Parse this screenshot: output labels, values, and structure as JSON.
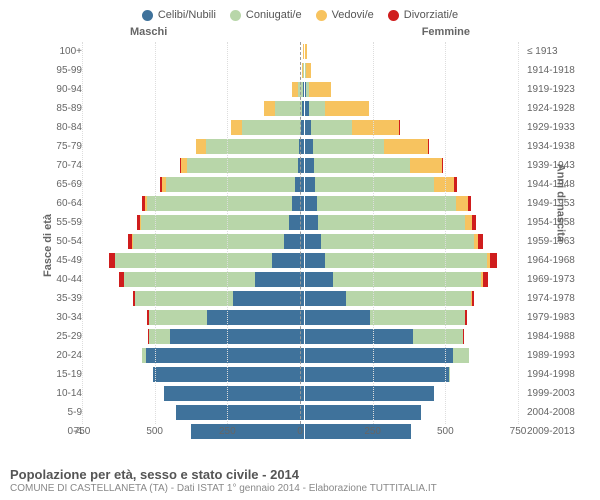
{
  "chart": {
    "type": "population-pyramid",
    "legend": [
      {
        "label": "Celibi/Nubili",
        "color": "#3f729b"
      },
      {
        "label": "Coniugati/e",
        "color": "#b8d6a9"
      },
      {
        "label": "Vedovi/e",
        "color": "#f7c35f"
      },
      {
        "label": "Divorziati/e",
        "color": "#cf1d1d"
      }
    ],
    "male_header": "Maschi",
    "female_header": "Femmine",
    "y_title_left": "Fasce di età",
    "y_title_right": "Anni di nascita",
    "xticks": [
      750,
      500,
      250,
      0,
      250,
      500,
      750
    ],
    "xmax": 750,
    "background_color": "#ffffff",
    "grid_color": "#dddddd",
    "centerline_color": "#999999",
    "label_fontsize": 10,
    "title": "Popolazione per età, sesso e stato civile - 2014",
    "subtitle": "COMUNE DI CASTELLANETA (TA) - Dati ISTAT 1° gennaio 2014 - Elaborazione TUTTITALIA.IT",
    "rows": [
      {
        "age": "100+",
        "birth": "≤ 1913",
        "m": {
          "single": 0,
          "married": 0,
          "widowed": 2,
          "divorced": 0
        },
        "f": {
          "single": 0,
          "married": 0,
          "widowed": 6,
          "divorced": 0
        }
      },
      {
        "age": "95-99",
        "birth": "1914-1918",
        "m": {
          "single": 0,
          "married": 2,
          "widowed": 4,
          "divorced": 0
        },
        "f": {
          "single": 1,
          "married": 1,
          "widowed": 20,
          "divorced": 0
        }
      },
      {
        "age": "90-94",
        "birth": "1919-1923",
        "m": {
          "single": 2,
          "married": 20,
          "widowed": 20,
          "divorced": 0
        },
        "f": {
          "single": 5,
          "married": 10,
          "widowed": 75,
          "divorced": 0
        }
      },
      {
        "age": "85-89",
        "birth": "1924-1928",
        "m": {
          "single": 6,
          "married": 95,
          "widowed": 35,
          "divorced": 0
        },
        "f": {
          "single": 15,
          "married": 55,
          "widowed": 150,
          "divorced": 0
        }
      },
      {
        "age": "80-84",
        "birth": "1929-1933",
        "m": {
          "single": 12,
          "married": 200,
          "widowed": 40,
          "divorced": 0
        },
        "f": {
          "single": 22,
          "married": 140,
          "widowed": 160,
          "divorced": 2
        }
      },
      {
        "age": "75-79",
        "birth": "1934-1938",
        "m": {
          "single": 18,
          "married": 320,
          "widowed": 32,
          "divorced": 2
        },
        "f": {
          "single": 28,
          "married": 245,
          "widowed": 150,
          "divorced": 4
        }
      },
      {
        "age": "70-74",
        "birth": "1939-1943",
        "m": {
          "single": 22,
          "married": 380,
          "widowed": 22,
          "divorced": 4
        },
        "f": {
          "single": 30,
          "married": 330,
          "widowed": 110,
          "divorced": 5
        }
      },
      {
        "age": "65-69",
        "birth": "1944-1948",
        "m": {
          "single": 30,
          "married": 445,
          "widowed": 14,
          "divorced": 6
        },
        "f": {
          "single": 34,
          "married": 410,
          "widowed": 70,
          "divorced": 8
        }
      },
      {
        "age": "60-64",
        "birth": "1949-1953",
        "m": {
          "single": 40,
          "married": 500,
          "widowed": 8,
          "divorced": 8
        },
        "f": {
          "single": 40,
          "married": 480,
          "widowed": 42,
          "divorced": 10
        }
      },
      {
        "age": "55-59",
        "birth": "1954-1958",
        "m": {
          "single": 50,
          "married": 510,
          "widowed": 5,
          "divorced": 10
        },
        "f": {
          "single": 45,
          "married": 505,
          "widowed": 25,
          "divorced": 12
        }
      },
      {
        "age": "50-54",
        "birth": "1959-1963",
        "m": {
          "single": 70,
          "married": 520,
          "widowed": 3,
          "divorced": 14
        },
        "f": {
          "single": 55,
          "married": 525,
          "widowed": 15,
          "divorced": 18
        }
      },
      {
        "age": "45-49",
        "birth": "1964-1968",
        "m": {
          "single": 110,
          "married": 540,
          "widowed": 2,
          "divorced": 18
        },
        "f": {
          "single": 70,
          "married": 555,
          "widowed": 10,
          "divorced": 24
        }
      },
      {
        "age": "40-44",
        "birth": "1969-1973",
        "m": {
          "single": 170,
          "married": 450,
          "widowed": 1,
          "divorced": 14
        },
        "f": {
          "single": 95,
          "married": 510,
          "widowed": 6,
          "divorced": 18
        }
      },
      {
        "age": "35-39",
        "birth": "1974-1978",
        "m": {
          "single": 245,
          "married": 335,
          "widowed": 0,
          "divorced": 8
        },
        "f": {
          "single": 140,
          "married": 430,
          "widowed": 3,
          "divorced": 10
        }
      },
      {
        "age": "30-34",
        "birth": "1979-1983",
        "m": {
          "single": 335,
          "married": 200,
          "widowed": 0,
          "divorced": 4
        },
        "f": {
          "single": 225,
          "married": 325,
          "widowed": 1,
          "divorced": 6
        }
      },
      {
        "age": "25-29",
        "birth": "1984-1988",
        "m": {
          "single": 460,
          "married": 75,
          "widowed": 0,
          "divorced": 1
        },
        "f": {
          "single": 370,
          "married": 175,
          "widowed": 0,
          "divorced": 2
        }
      },
      {
        "age": "20-24",
        "birth": "1989-1993",
        "m": {
          "single": 545,
          "married": 12,
          "widowed": 0,
          "divorced": 0
        },
        "f": {
          "single": 510,
          "married": 55,
          "widowed": 0,
          "divorced": 0
        }
      },
      {
        "age": "15-19",
        "birth": "1994-1998",
        "m": {
          "single": 520,
          "married": 0,
          "widowed": 0,
          "divorced": 0
        },
        "f": {
          "single": 495,
          "married": 4,
          "widowed": 0,
          "divorced": 0
        }
      },
      {
        "age": "10-14",
        "birth": "1999-2003",
        "m": {
          "single": 480,
          "married": 0,
          "widowed": 0,
          "divorced": 0
        },
        "f": {
          "single": 445,
          "married": 0,
          "widowed": 0,
          "divorced": 0
        }
      },
      {
        "age": "5-9",
        "birth": "2004-2008",
        "m": {
          "single": 440,
          "married": 0,
          "widowed": 0,
          "divorced": 0
        },
        "f": {
          "single": 400,
          "married": 0,
          "widowed": 0,
          "divorced": 0
        }
      },
      {
        "age": "0-4",
        "birth": "2009-2013",
        "m": {
          "single": 390,
          "married": 0,
          "widowed": 0,
          "divorced": 0
        },
        "f": {
          "single": 365,
          "married": 0,
          "widowed": 0,
          "divorced": 0
        }
      }
    ]
  }
}
